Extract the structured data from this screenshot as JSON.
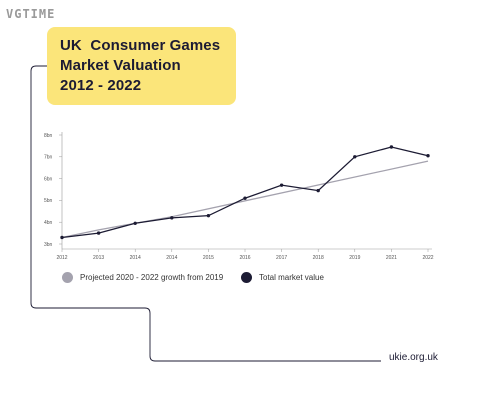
{
  "watermark": "VGTIME",
  "title": {
    "line1": "UK  Consumer Games",
    "line2": "Market Valuation",
    "line3": "2012 - 2022"
  },
  "source": "ukie.org.uk",
  "colors": {
    "accent_yellow": "#fbe57a",
    "navy": "#1c1b33",
    "projection_grey": "#a4a2ae"
  },
  "chart_data": {
    "type": "line",
    "x": [
      "2012",
      "2013",
      "2014",
      "2014",
      "2015",
      "2016",
      "2017",
      "2018",
      "2019",
      "2021",
      "2022"
    ],
    "y_ticks": [
      "3bn",
      "4bn",
      "5bn",
      "6bn",
      "7bn",
      "8bn"
    ],
    "ylim": [
      3,
      8
    ],
    "grid": false,
    "legend_position": "bottom",
    "series": [
      {
        "name": "Total market value",
        "color": "#1c1b33",
        "values": [
          3.3,
          3.5,
          3.95,
          4.2,
          4.3,
          5.1,
          5.7,
          5.45,
          7.0,
          7.45,
          7.05
        ]
      },
      {
        "name": "Projected 2020 - 2022 growth from 2019",
        "color": "#a4a2ae",
        "values": [
          3.3,
          3.65,
          null,
          4.25,
          null,
          null,
          null,
          null,
          null,
          null,
          6.8
        ]
      }
    ],
    "legend": [
      {
        "label": "Projected 2020 - 2022 growth from 2019",
        "color": "#a4a2ae"
      },
      {
        "label": "Total market value",
        "color": "#1c1b33"
      }
    ]
  }
}
